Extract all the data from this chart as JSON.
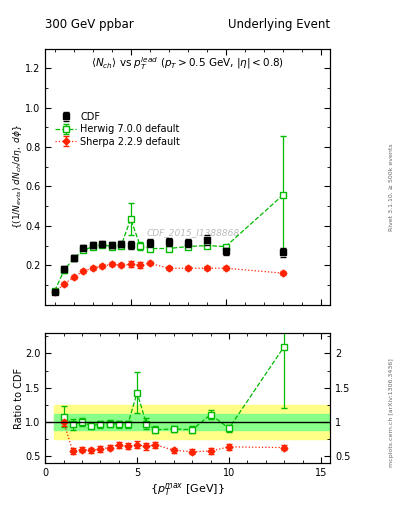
{
  "title_left": "300 GeV ppbar",
  "title_right": "Underlying Event",
  "watermark": "CDF_2015_I1388868",
  "cdf_x": [
    1.0,
    1.5,
    2.0,
    2.5,
    3.0,
    3.5,
    4.0,
    4.5,
    5.0,
    6.0,
    7.0,
    8.0,
    9.0,
    10.0,
    13.0
  ],
  "cdf_y": [
    0.065,
    0.18,
    0.235,
    0.29,
    0.305,
    0.31,
    0.305,
    0.31,
    0.305,
    0.315,
    0.32,
    0.315,
    0.33,
    0.27,
    0.265
  ],
  "cdf_yerr": [
    0.01,
    0.015,
    0.015,
    0.015,
    0.015,
    0.015,
    0.015,
    0.015,
    0.02,
    0.02,
    0.02,
    0.02,
    0.025,
    0.02,
    0.025
  ],
  "herwig_x": [
    1.0,
    1.5,
    2.0,
    2.5,
    3.0,
    3.5,
    4.0,
    4.5,
    5.0,
    5.5,
    6.0,
    7.0,
    8.0,
    9.0,
    10.0,
    13.0
  ],
  "herwig_y": [
    0.07,
    0.175,
    0.235,
    0.275,
    0.295,
    0.305,
    0.295,
    0.3,
    0.435,
    0.3,
    0.285,
    0.285,
    0.295,
    0.3,
    0.295,
    0.555
  ],
  "herwig_yerr": [
    0.01,
    0.012,
    0.01,
    0.01,
    0.01,
    0.01,
    0.01,
    0.01,
    0.08,
    0.02,
    0.01,
    0.01,
    0.01,
    0.01,
    0.01,
    0.3
  ],
  "sherpa_x": [
    1.0,
    1.5,
    2.0,
    2.5,
    3.0,
    3.5,
    4.0,
    4.5,
    5.0,
    5.5,
    6.0,
    7.0,
    8.0,
    9.0,
    10.0,
    13.0
  ],
  "sherpa_y": [
    0.065,
    0.105,
    0.14,
    0.17,
    0.185,
    0.195,
    0.205,
    0.2,
    0.205,
    0.2,
    0.21,
    0.185,
    0.185,
    0.185,
    0.185,
    0.16
  ],
  "sherpa_yerr": [
    0.01,
    0.01,
    0.01,
    0.01,
    0.01,
    0.01,
    0.01,
    0.01,
    0.015,
    0.015,
    0.01,
    0.01,
    0.01,
    0.01,
    0.01,
    0.01
  ],
  "ratio_herwig_x": [
    1.0,
    1.5,
    2.0,
    2.5,
    3.0,
    3.5,
    4.0,
    4.5,
    5.0,
    5.5,
    6.0,
    7.0,
    8.0,
    9.0,
    10.0,
    13.0
  ],
  "ratio_herwig_y": [
    1.08,
    0.97,
    1.0,
    0.95,
    0.97,
    0.98,
    0.97,
    0.97,
    1.43,
    0.98,
    0.89,
    0.9,
    0.89,
    1.11,
    0.91,
    2.1
  ],
  "ratio_herwig_yerr": [
    0.15,
    0.08,
    0.06,
    0.05,
    0.05,
    0.05,
    0.05,
    0.05,
    0.3,
    0.08,
    0.05,
    0.05,
    0.05,
    0.06,
    0.05,
    0.9
  ],
  "ratio_sherpa_x": [
    1.0,
    1.5,
    2.0,
    2.5,
    3.0,
    3.5,
    4.0,
    4.5,
    5.0,
    5.5,
    6.0,
    7.0,
    8.0,
    9.0,
    10.0,
    13.0
  ],
  "ratio_sherpa_y": [
    1.0,
    0.58,
    0.6,
    0.59,
    0.61,
    0.63,
    0.67,
    0.65,
    0.67,
    0.65,
    0.67,
    0.59,
    0.57,
    0.58,
    0.64,
    0.63
  ],
  "ratio_sherpa_yerr": [
    0.05,
    0.04,
    0.04,
    0.04,
    0.04,
    0.04,
    0.04,
    0.04,
    0.05,
    0.05,
    0.04,
    0.04,
    0.04,
    0.04,
    0.04,
    0.04
  ],
  "ylim_main": [
    0.0,
    1.3
  ],
  "ylim_ratio": [
    0.4,
    2.3
  ],
  "xlim": [
    0.5,
    15.5
  ],
  "color_cdf": "#000000",
  "color_herwig": "#00bb00",
  "color_sherpa": "#ff2200",
  "color_band_yellow": "#ffff88",
  "color_band_green": "#88ff88",
  "bg_color": "#ffffff"
}
